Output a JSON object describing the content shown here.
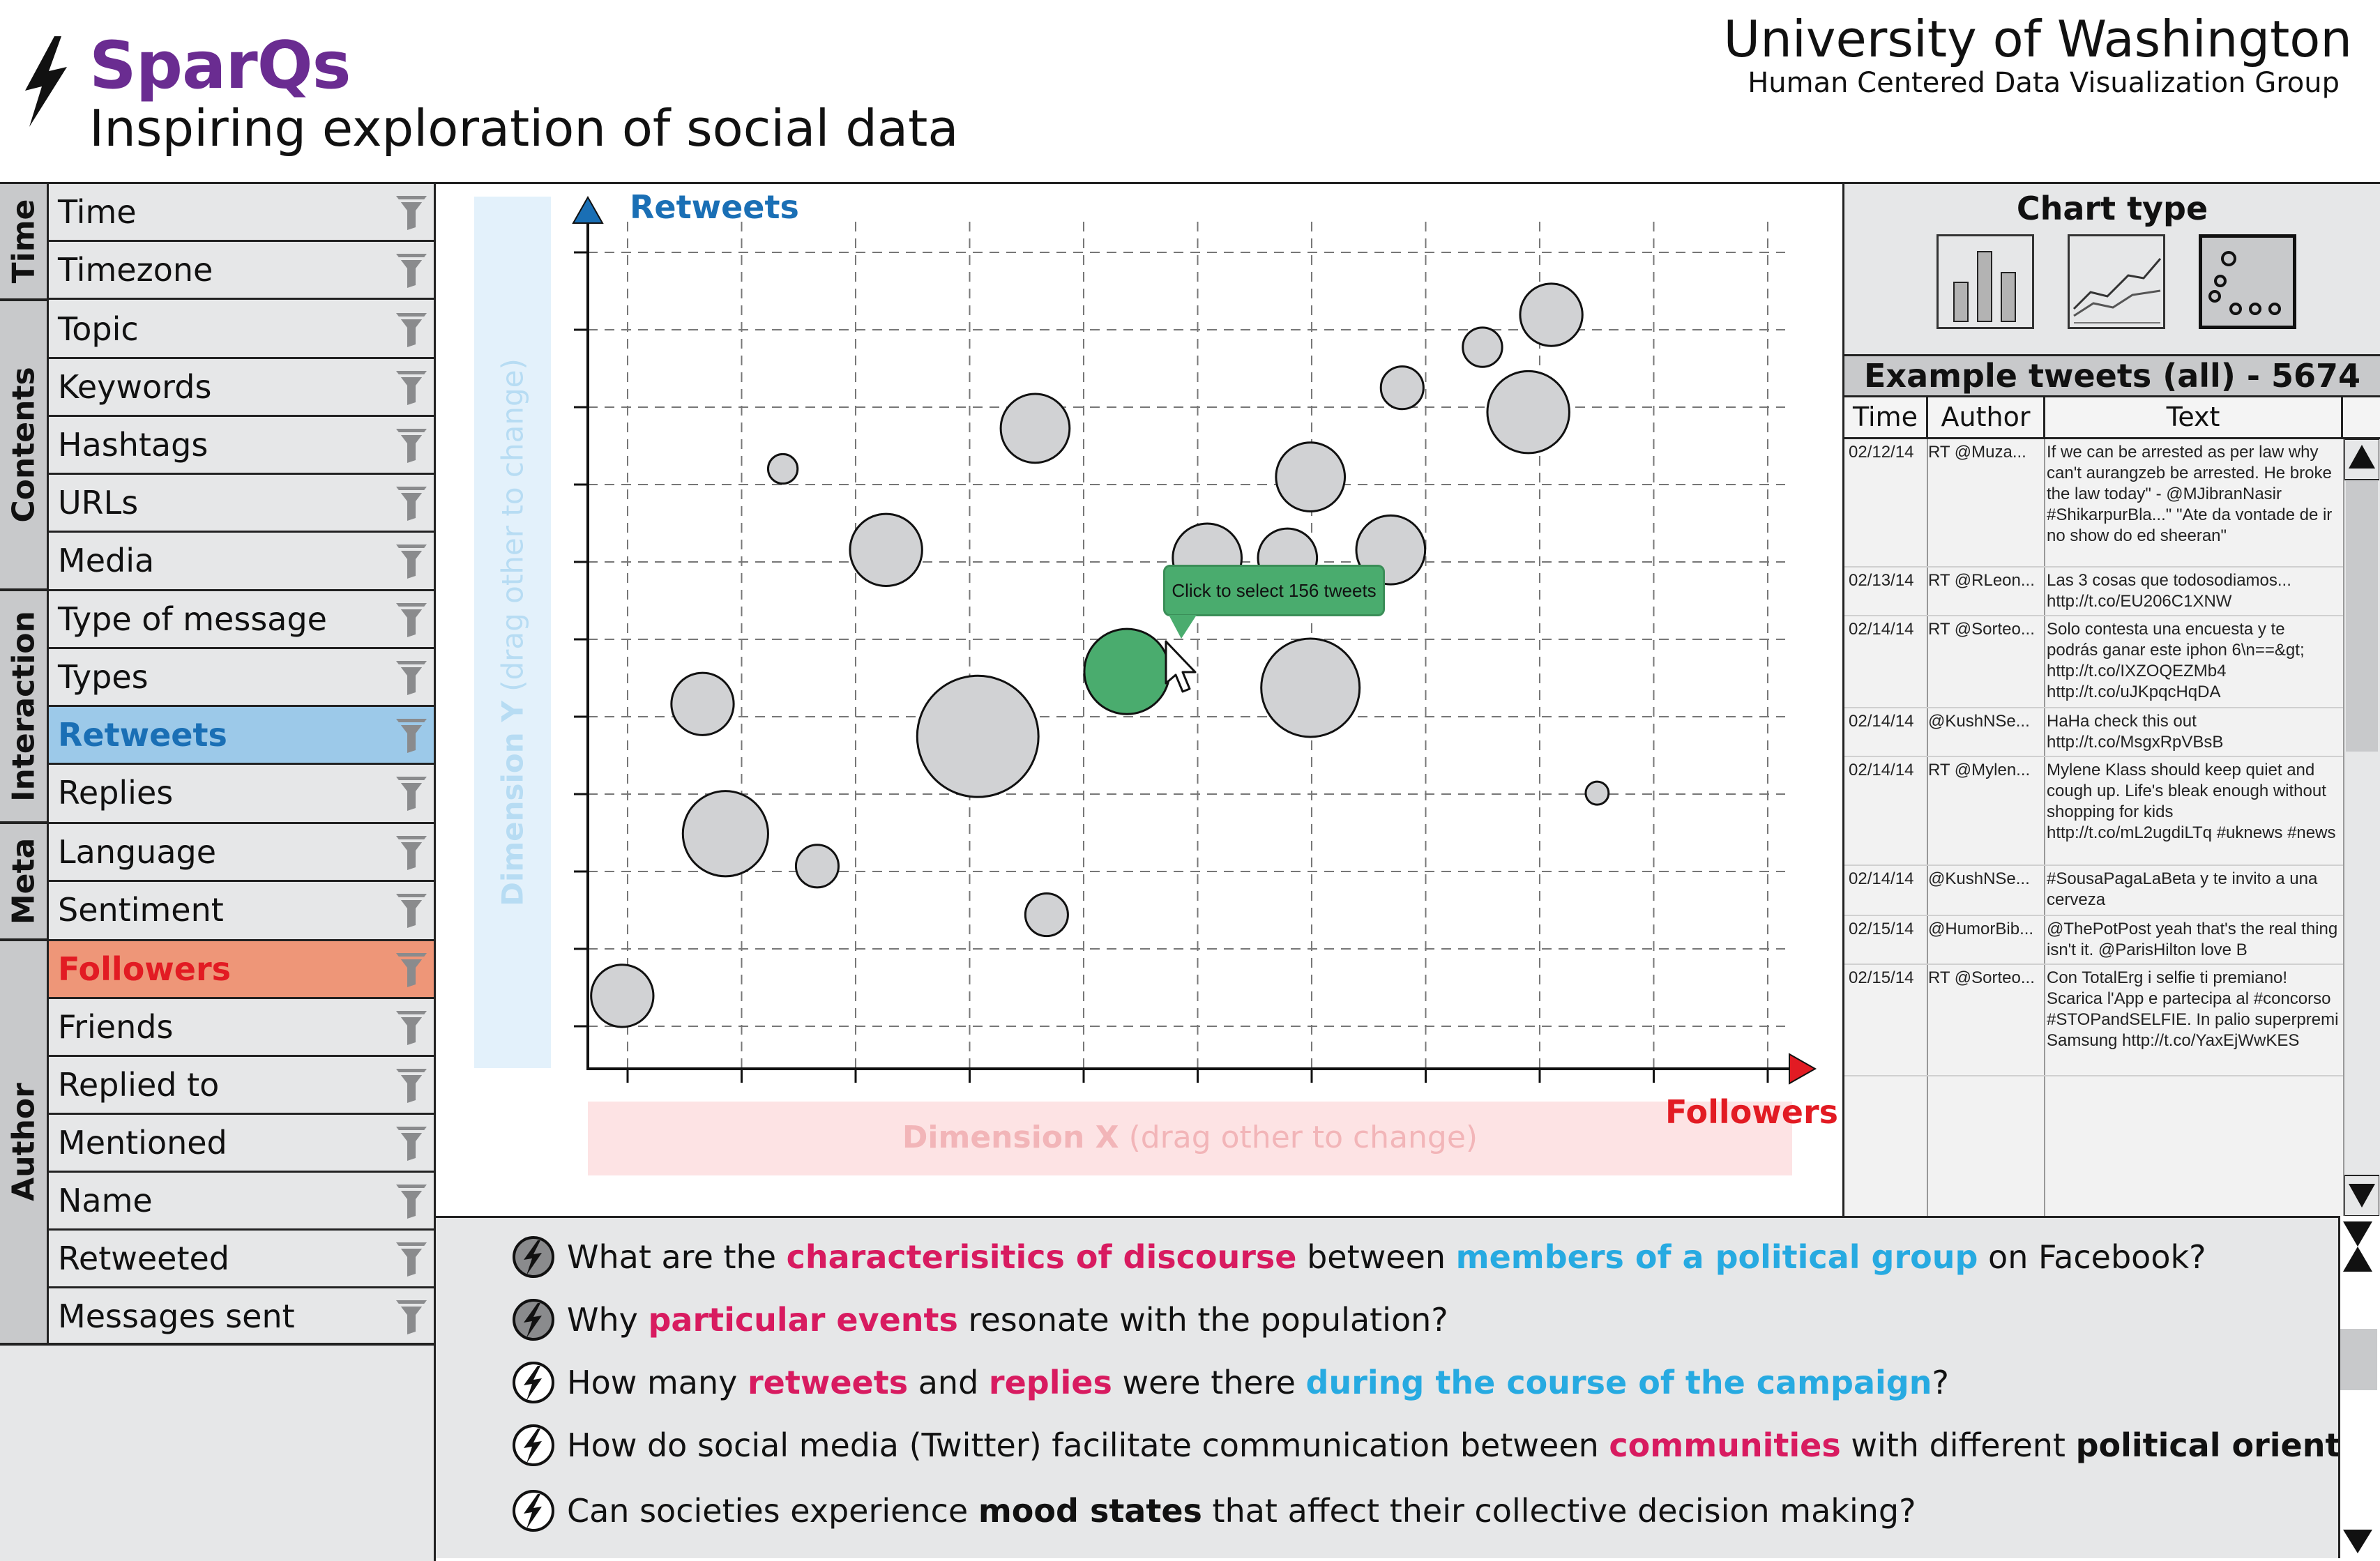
{
  "header": {
    "app_name": "SparQs",
    "tagline": "Inspiring exploration of social data",
    "org_name": "University of Washington",
    "org_group": "Human Centered Data Visualization Group",
    "brand_color": "#6a2c91"
  },
  "sidebar": {
    "groups": [
      "Time",
      "Contents",
      "Interaction",
      "Meta",
      "Author"
    ],
    "fields": {
      "time": "Time",
      "timezone": "Timezone",
      "topic": "Topic",
      "keywords": "Keywords",
      "hashtags": "Hashtags",
      "urls": "URLs",
      "media": "Media",
      "type_of_message": "Type of message",
      "types": "Types",
      "retweets": "Retweets",
      "replies": "Replies",
      "language": "Language",
      "sentiment": "Sentiment",
      "followers": "Followers",
      "friends": "Friends",
      "replied_to": "Replied to",
      "mentioned": "Mentioned",
      "name": "Name",
      "retweeted": "Retweeted",
      "messages_sent": "Messages sent"
    },
    "selected_y": "Retweets",
    "selected_x": "Followers",
    "filter_icon": "funnel-icon"
  },
  "chart": {
    "y_axis_name": "Retweets",
    "x_axis_name": "Followers",
    "dim_y_strong": "Dimension Y",
    "dim_y_hint": " (drag other to change)",
    "dim_x_strong": "Dimension X",
    "dim_x_hint": " (drag other to change)",
    "tooltip": "Click to select 156 tweets",
    "y_color": "#1a6fb5",
    "x_color": "#e21b23",
    "highlight_color": "#4aac6e"
  },
  "chart_data": {
    "type": "scatter",
    "xlabel": "Followers",
    "ylabel": "Retweets",
    "xlim": [
      0,
      10.5
    ],
    "ylim": [
      0,
      10.5
    ],
    "grid": true,
    "points": [
      {
        "x": 0.3,
        "y": 0.9,
        "size": 19
      },
      {
        "x": 1.0,
        "y": 4.5,
        "size": 19
      },
      {
        "x": 1.2,
        "y": 2.9,
        "size": 26
      },
      {
        "x": 1.7,
        "y": 7.4,
        "size": 9
      },
      {
        "x": 2.0,
        "y": 2.5,
        "size": 13
      },
      {
        "x": 2.6,
        "y": 6.4,
        "size": 22
      },
      {
        "x": 3.4,
        "y": 4.1,
        "size": 37
      },
      {
        "x": 3.9,
        "y": 7.9,
        "size": 21
      },
      {
        "x": 4.0,
        "y": 1.9,
        "size": 13
      },
      {
        "x": 4.7,
        "y": 4.9,
        "size": 26,
        "selected": true,
        "count": 156
      },
      {
        "x": 5.4,
        "y": 6.3,
        "size": 21
      },
      {
        "x": 6.1,
        "y": 6.3,
        "size": 18
      },
      {
        "x": 6.3,
        "y": 4.7,
        "size": 30
      },
      {
        "x": 6.3,
        "y": 7.3,
        "size": 21
      },
      {
        "x": 7.0,
        "y": 6.4,
        "size": 21
      },
      {
        "x": 7.1,
        "y": 8.4,
        "size": 13
      },
      {
        "x": 7.8,
        "y": 8.9,
        "size": 12
      },
      {
        "x": 8.2,
        "y": 8.1,
        "size": 25
      },
      {
        "x": 8.4,
        "y": 9.3,
        "size": 19
      },
      {
        "x": 8.8,
        "y": 3.4,
        "size": 7
      }
    ]
  },
  "chart_type": {
    "title": "Chart type",
    "options": [
      "bar",
      "line",
      "scatter"
    ],
    "selected": "scatter"
  },
  "tweets": {
    "title": "Example tweets (all) - 5674",
    "columns": [
      "Time",
      "Author",
      "Text"
    ],
    "rows": [
      {
        "time": "02/12/14",
        "author": "RT @Muza...",
        "text": "If we can be arrested as per law why can't aurangzeb be arrested. He broke the law today\" - @MJibranNasir #ShikarpurBla...\" \"Ate da vontade de ir no show do ed sheeran\""
      },
      {
        "time": "02/13/14",
        "author": "RT @RLeon...",
        "text": "Las 3 cosas que todosodiamos... http://t.co/EU206C1XNW"
      },
      {
        "time": "02/14/14",
        "author": "RT @Sorteo...",
        "text": "Solo contesta una encuesta y te podrás ganar este iphon 6\\n==&gt; http://t.co/IXZOQEZMb4 http://t.co/uJKpqcHqDA"
      },
      {
        "time": "02/14/14",
        "author": "@KushNSe...",
        "text": "HaHa check this out http://t.co/MsgxRpVBsB"
      },
      {
        "time": "02/14/14",
        "author": "RT @Mylen...",
        "text": "Mylene Klass should keep quiet and cough up. Life's bleak enough without shopping for kids http://t.co/mL2ugdiLTq #uknews #news"
      },
      {
        "time": "02/14/14",
        "author": "@KushNSe...",
        "text": "#SousaPagaLaBeta y te invito a una cerveza"
      },
      {
        "time": "02/15/14",
        "author": "@HumorBib...",
        "text": "@ThePotPost yeah that's the real thing isn't it. @ParisHilton love B"
      },
      {
        "time": "02/15/14",
        "author": "RT @Sorteo...",
        "text": "Con TotalErg i selfie ti premiano! Scarica l'App e partecipa al #concorso #STOPandSELFIE. In palio superpremi Samsung http://t.co/YaxEjWwKES"
      }
    ]
  },
  "questions": {
    "q1": {
      "a": "What are the ",
      "b": "characterisitics of discourse",
      "c": " between ",
      "d": "members of a political group",
      "e": " on Facebook?"
    },
    "q2": {
      "a": "Why ",
      "b": "particular events",
      "c": " resonate with the population?"
    },
    "q3": {
      "a": "How many ",
      "b": "retweets",
      "c": " and ",
      "d": "replies",
      "e": " were there ",
      "f": "during the course of the campaign",
      "g": "?"
    },
    "q4": {
      "a": "How do social media (Twitter) facilitate communication between ",
      "b": "communities",
      "c": " with different ",
      "d": "political orientations",
      "e": "?"
    },
    "q5": {
      "a": "Can societies experience ",
      "b": "mood states",
      "c": " that affect their collective decision making?"
    }
  }
}
